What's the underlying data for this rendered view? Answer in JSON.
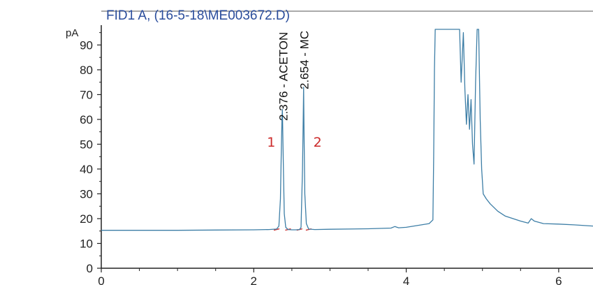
{
  "chart_data": {
    "type": "line",
    "title": "FID1 A, (16-5-18\\ME003672.D)",
    "ylabel": "pA",
    "xlim": [
      0,
      6.45
    ],
    "ylim": [
      0,
      98
    ],
    "yticks": [
      0,
      10,
      20,
      30,
      40,
      50,
      60,
      70,
      80,
      90
    ],
    "xticks": [
      0,
      2,
      4,
      6
    ],
    "line_color": "#3d7ea6",
    "series": [
      {
        "x": [
          0.0,
          0.5,
          1.0,
          1.5,
          2.0,
          2.2,
          2.3,
          2.33,
          2.35,
          2.36,
          2.37,
          2.376,
          2.39,
          2.4,
          2.42,
          2.45,
          2.5,
          2.55,
          2.6,
          2.62,
          2.64,
          2.65,
          2.654,
          2.66,
          2.67,
          2.69,
          2.72,
          2.8,
          3.0,
          3.5,
          3.8,
          3.85,
          3.9,
          4.0,
          4.2,
          4.3,
          4.35,
          4.36,
          4.37,
          4.38,
          4.4,
          4.7,
          4.72,
          4.75,
          4.77,
          4.79,
          4.81,
          4.83,
          4.85,
          4.87,
          4.89,
          4.91,
          4.93,
          4.95,
          4.97,
          4.99,
          5.01,
          5.05,
          5.1,
          5.2,
          5.3,
          5.5,
          5.6,
          5.64,
          5.68,
          5.8,
          6.0,
          6.2,
          6.45
        ],
        "y": [
          15.3,
          15.3,
          15.3,
          15.4,
          15.5,
          15.6,
          15.8,
          17.0,
          28.0,
          45.0,
          60.0,
          64.0,
          38.0,
          22.0,
          16.5,
          15.6,
          15.5,
          15.5,
          15.6,
          16.5,
          40.0,
          62.0,
          73.0,
          55.0,
          30.0,
          18.0,
          15.8,
          15.6,
          15.7,
          15.9,
          16.2,
          16.8,
          16.3,
          16.5,
          17.5,
          18.0,
          19.5,
          45.0,
          80.0,
          98.0,
          98.0,
          98.0,
          75.0,
          95.0,
          72.0,
          58.0,
          70.0,
          56.0,
          68.0,
          50.0,
          42.0,
          75.0,
          98.0,
          98.0,
          60.0,
          40.0,
          30.0,
          28.0,
          26.0,
          23.0,
          21.0,
          19.0,
          18.2,
          20.0,
          19.0,
          18.0,
          17.8,
          17.5,
          17.0
        ]
      }
    ],
    "peaks": [
      {
        "rt": 2.376,
        "label": "2.376 - ACETON",
        "marker": "1"
      },
      {
        "rt": 2.654,
        "label": "2.654 - MC",
        "marker": "2"
      }
    ]
  }
}
